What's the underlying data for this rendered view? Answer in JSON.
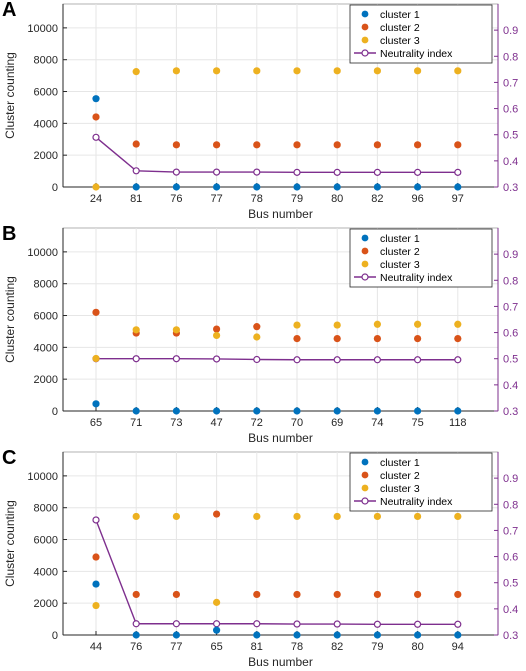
{
  "colors": {
    "cluster1": "#0072BD",
    "cluster2": "#D95319",
    "cluster3": "#EDB120",
    "neutrality": "#7E2F8E",
    "grid": "#e6e6e6",
    "axis": "#262626"
  },
  "chart_data": [
    {
      "type": "scatter",
      "panel_label": "A",
      "categories": [
        "24",
        "81",
        "76",
        "77",
        "78",
        "79",
        "80",
        "82",
        "96",
        "97"
      ],
      "xlabel": "Bus number",
      "ylabel": "Cluster counting",
      "ylim": [
        0,
        11500
      ],
      "yticks": [
        0,
        2000,
        4000,
        6000,
        8000,
        10000
      ],
      "y2lim": [
        0.3,
        1.0
      ],
      "y2ticks": [
        0.3,
        0.4,
        0.5,
        0.6,
        0.7,
        0.8,
        0.9
      ],
      "grid": true,
      "legend_position": "top-right",
      "series": [
        {
          "name": "cluster 1",
          "kind": "marker",
          "values": [
            5550,
            0,
            0,
            0,
            0,
            0,
            0,
            0,
            0,
            0
          ]
        },
        {
          "name": "cluster 2",
          "kind": "marker",
          "values": [
            4400,
            2700,
            2650,
            2650,
            2650,
            2650,
            2650,
            2650,
            2650,
            2650
          ]
        },
        {
          "name": "cluster 3",
          "kind": "marker",
          "values": [
            0,
            7250,
            7300,
            7300,
            7300,
            7300,
            7300,
            7300,
            7300,
            7300
          ]
        },
        {
          "name": "Neutrality index",
          "kind": "line",
          "axis": "right",
          "values": [
            0.49,
            0.362,
            0.357,
            0.357,
            0.357,
            0.356,
            0.356,
            0.356,
            0.356,
            0.356
          ]
        }
      ]
    },
    {
      "type": "scatter",
      "panel_label": "B",
      "categories": [
        "65",
        "71",
        "73",
        "47",
        "72",
        "70",
        "69",
        "74",
        "75",
        "118"
      ],
      "xlabel": "Bus number",
      "ylabel": "Cluster counting",
      "ylim": [
        0,
        11500
      ],
      "yticks": [
        0,
        2000,
        4000,
        6000,
        8000,
        10000
      ],
      "y2lim": [
        0.3,
        1.0
      ],
      "y2ticks": [
        0.3,
        0.4,
        0.5,
        0.6,
        0.7,
        0.8,
        0.9
      ],
      "grid": true,
      "legend_position": "top-right",
      "series": [
        {
          "name": "cluster 1",
          "kind": "marker",
          "values": [
            450,
            0,
            0,
            0,
            0,
            0,
            0,
            0,
            0,
            0
          ]
        },
        {
          "name": "cluster 2",
          "kind": "marker",
          "values": [
            6200,
            4900,
            4900,
            5150,
            5300,
            4550,
            4550,
            4550,
            4550,
            4550
          ]
        },
        {
          "name": "cluster 3",
          "kind": "marker",
          "values": [
            3300,
            5100,
            5100,
            4750,
            4650,
            5400,
            5400,
            5450,
            5450,
            5450
          ]
        },
        {
          "name": "Neutrality index",
          "kind": "line",
          "axis": "right",
          "values": [
            0.5,
            0.5,
            0.5,
            0.499,
            0.497,
            0.496,
            0.496,
            0.496,
            0.496,
            0.496
          ]
        }
      ]
    },
    {
      "type": "scatter",
      "panel_label": "C",
      "categories": [
        "44",
        "76",
        "77",
        "65",
        "81",
        "78",
        "82",
        "79",
        "80",
        "94"
      ],
      "xlabel": "Bus number",
      "ylabel": "Cluster counting",
      "ylim": [
        0,
        11500
      ],
      "yticks": [
        0,
        2000,
        4000,
        6000,
        8000,
        10000
      ],
      "y2lim": [
        0.3,
        1.0
      ],
      "y2ticks": [
        0.3,
        0.4,
        0.5,
        0.6,
        0.7,
        0.8,
        0.9
      ],
      "grid": true,
      "legend_position": "top-right",
      "series": [
        {
          "name": "cluster 1",
          "kind": "marker",
          "values": [
            3200,
            0,
            0,
            300,
            0,
            0,
            0,
            0,
            0,
            0
          ]
        },
        {
          "name": "cluster 2",
          "kind": "marker",
          "values": [
            4900,
            2550,
            2550,
            7600,
            2550,
            2550,
            2550,
            2550,
            2550,
            2550
          ]
        },
        {
          "name": "cluster 3",
          "kind": "marker",
          "values": [
            1850,
            7450,
            7450,
            2050,
            7450,
            7450,
            7450,
            7450,
            7450,
            7450
          ]
        },
        {
          "name": "Neutrality index",
          "kind": "line",
          "axis": "right",
          "values": [
            0.74,
            0.343,
            0.343,
            0.343,
            0.343,
            0.342,
            0.342,
            0.341,
            0.341,
            0.341
          ]
        }
      ]
    }
  ]
}
